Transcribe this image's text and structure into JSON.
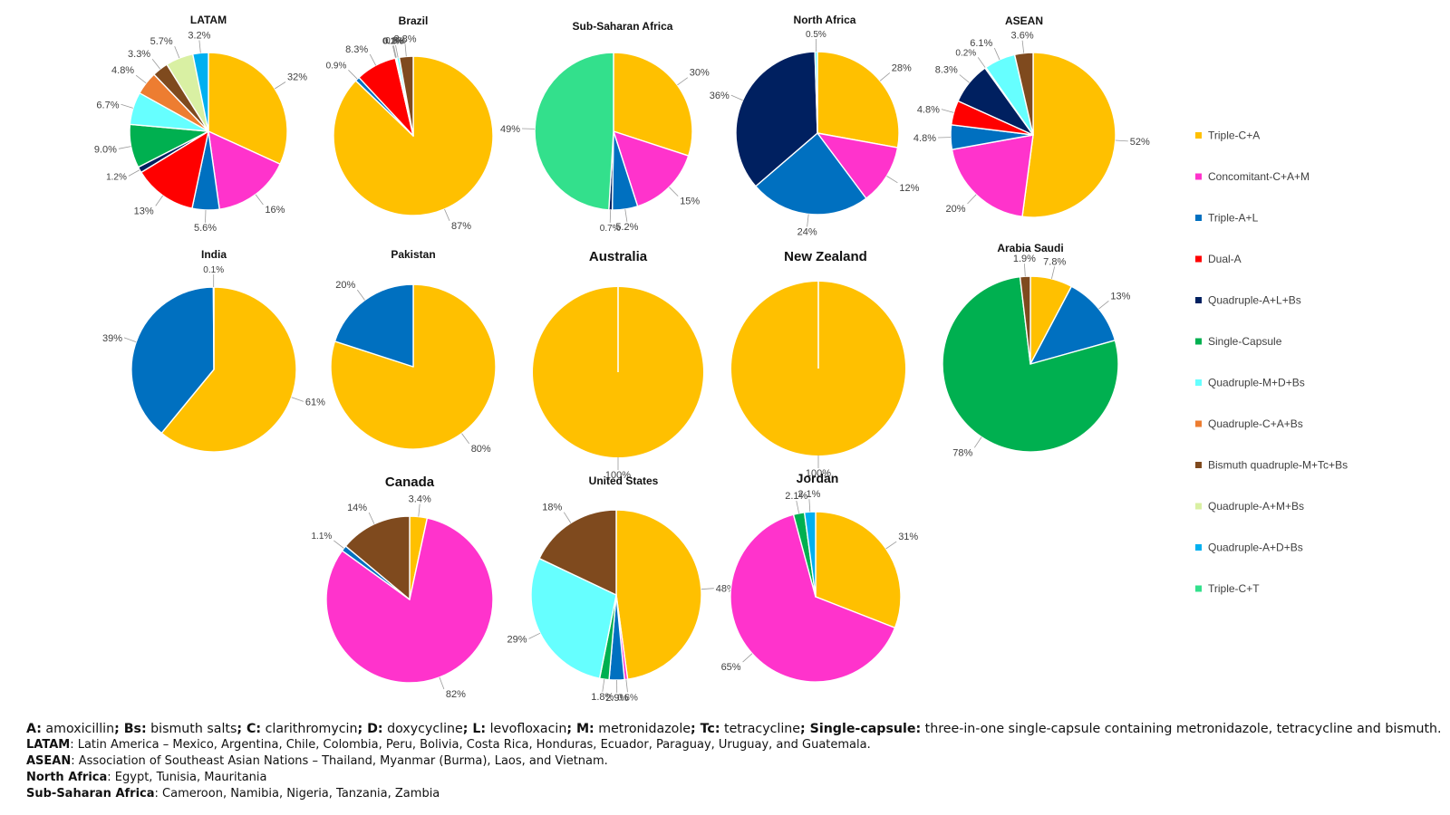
{
  "categories": {
    "TCA": {
      "label": "Triple-C+A",
      "color": "#ffc000"
    },
    "CCAM": {
      "label": "Concomitant-C+A+M",
      "color": "#ff33cc"
    },
    "TAL": {
      "label": "Triple-A+L",
      "color": "#0070c0"
    },
    "DA": {
      "label": "Dual-A",
      "color": "#ff0000"
    },
    "QALB": {
      "label": "Quadruple-A+L+Bs",
      "color": "#002060"
    },
    "SC": {
      "label": "Single-Capsule",
      "color": "#00b050"
    },
    "QMDB": {
      "label": "Quadruple-M+D+Bs",
      "color": "#66ffff"
    },
    "QCAB": {
      "label": "Quadruple-C+A+Bs",
      "color": "#ed7d31"
    },
    "BQ": {
      "label": "Bismuth quadruple-M+Tc+Bs",
      "color": "#7f4a1e"
    },
    "QAMB": {
      "label": "Quadruple-A+M+Bs",
      "color": "#d9f0a3"
    },
    "QADB": {
      "label": "Quadruple-A+D+Bs",
      "color": "#00b0f0"
    },
    "TCT": {
      "label": "Triple-C+T",
      "color": "#33e08c"
    }
  },
  "legend_order": [
    "TCA",
    "CCAM",
    "TAL",
    "DA",
    "QALB",
    "SC",
    "QMDB",
    "QCAB",
    "BQ",
    "QAMB",
    "QADB",
    "TCT"
  ],
  "chart_data": [
    {
      "type": "pie",
      "title": "LATAM",
      "slices": [
        {
          "cat": "TCA",
          "value": 32,
          "label": "32%"
        },
        {
          "cat": "CCAM",
          "value": 16,
          "label": "16%"
        },
        {
          "cat": "TAL",
          "value": 5.6,
          "label": "5.6%"
        },
        {
          "cat": "DA",
          "value": 13,
          "label": "13%"
        },
        {
          "cat": "QALB",
          "value": 1.2,
          "label": "1.2%"
        },
        {
          "cat": "SC",
          "value": 9.0,
          "label": "9.0%"
        },
        {
          "cat": "QMDB",
          "value": 6.7,
          "label": "6.7%"
        },
        {
          "cat": "QCAB",
          "value": 4.8,
          "label": "4.8%"
        },
        {
          "cat": "BQ",
          "value": 3.3,
          "label": "3.3%"
        },
        {
          "cat": "QAMB",
          "value": 5.7,
          "label": "5.7%"
        },
        {
          "cat": "QADB",
          "value": 3.2,
          "label": "3.2%"
        }
      ]
    },
    {
      "type": "pie",
      "title": "Brazil",
      "slices": [
        {
          "cat": "TCA",
          "value": 87,
          "label": "87%"
        },
        {
          "cat": "TAL",
          "value": 0.9,
          "label": "0.9%"
        },
        {
          "cat": "DA",
          "value": 8.3,
          "label": "8.3%"
        },
        {
          "cat": "QALB",
          "value": 0.1,
          "label": "0.1%"
        },
        {
          "cat": "SC",
          "value": 0.2,
          "label": "0.2%"
        },
        {
          "cat": "QMDB",
          "value": 0.5,
          "label": "0.5%"
        },
        {
          "cat": "BQ",
          "value": 2.8,
          "label": "2.8%"
        }
      ]
    },
    {
      "type": "pie",
      "title": "Sub-Saharan Africa",
      "slices": [
        {
          "cat": "TCA",
          "value": 30,
          "label": "30%"
        },
        {
          "cat": "CCAM",
          "value": 15,
          "label": "15%"
        },
        {
          "cat": "TAL",
          "value": 5.2,
          "label": "5.2%"
        },
        {
          "cat": "QALB",
          "value": 0.7,
          "label": "0.7%"
        },
        {
          "cat": "TCT",
          "value": 49,
          "label": "49%"
        }
      ]
    },
    {
      "type": "pie",
      "title": "North Africa",
      "slices": [
        {
          "cat": "TCA",
          "value": 28,
          "label": "28%"
        },
        {
          "cat": "CCAM",
          "value": 12,
          "label": "12%"
        },
        {
          "cat": "TAL",
          "value": 24,
          "label": "24%"
        },
        {
          "cat": "QALB",
          "value": 36,
          "label": "36%"
        },
        {
          "cat": "QMDB",
          "value": 0.5,
          "label": "0.5%"
        }
      ]
    },
    {
      "type": "pie",
      "title": "ASEAN",
      "slices": [
        {
          "cat": "TCA",
          "value": 52,
          "label": "52%"
        },
        {
          "cat": "CCAM",
          "value": 20,
          "label": "20%"
        },
        {
          "cat": "TAL",
          "value": 4.8,
          "label": "4.8%"
        },
        {
          "cat": "DA",
          "value": 4.8,
          "label": "4.8%"
        },
        {
          "cat": "QALB",
          "value": 8.3,
          "label": "8.3%"
        },
        {
          "cat": "SC",
          "value": 0.2,
          "label": "0.2%"
        },
        {
          "cat": "QMDB",
          "value": 6.1,
          "label": "6.1%"
        },
        {
          "cat": "BQ",
          "value": 3.6,
          "label": "3.6%"
        }
      ]
    },
    {
      "type": "pie",
      "title": "India",
      "slices": [
        {
          "cat": "TCA",
          "value": 61,
          "label": "61%"
        },
        {
          "cat": "TAL",
          "value": 39,
          "label": "39%"
        },
        {
          "cat": "QMDB",
          "value": 0.1,
          "label": "0.1%"
        }
      ]
    },
    {
      "type": "pie",
      "title": "Pakistan",
      "slices": [
        {
          "cat": "TCA",
          "value": 80,
          "label": "80%"
        },
        {
          "cat": "TAL",
          "value": 20,
          "label": "20%"
        }
      ]
    },
    {
      "type": "pie",
      "title": "Australia",
      "slices": [
        {
          "cat": "TCA",
          "value": 100,
          "label": "100%"
        }
      ]
    },
    {
      "type": "pie",
      "title": "New Zealand",
      "slices": [
        {
          "cat": "TCA",
          "value": 100,
          "label": "100%"
        }
      ]
    },
    {
      "type": "pie",
      "title": "Arabia Saudi",
      "slices": [
        {
          "cat": "TCA",
          "value": 7.8,
          "label": "7.8%"
        },
        {
          "cat": "TAL",
          "value": 13,
          "label": "13%"
        },
        {
          "cat": "SC",
          "value": 78,
          "label": "78%"
        },
        {
          "cat": "BQ",
          "value": 1.9,
          "label": "1.9%"
        }
      ]
    },
    {
      "type": "pie",
      "title": "Canada",
      "slices": [
        {
          "cat": "TCA",
          "value": 3.4,
          "label": "3.4%"
        },
        {
          "cat": "CCAM",
          "value": 82,
          "label": "82%"
        },
        {
          "cat": "TAL",
          "value": 1.1,
          "label": "1.1%"
        },
        {
          "cat": "BQ",
          "value": 14,
          "label": "14%"
        }
      ]
    },
    {
      "type": "pie",
      "title": "United States",
      "slices": [
        {
          "cat": "TCA",
          "value": 48,
          "label": "48%"
        },
        {
          "cat": "CCAM",
          "value": 0.6,
          "label": "0.6%"
        },
        {
          "cat": "TAL",
          "value": 2.9,
          "label": "2.9%"
        },
        {
          "cat": "SC",
          "value": 1.8,
          "label": "1.8%"
        },
        {
          "cat": "QMDB",
          "value": 29,
          "label": "29%"
        },
        {
          "cat": "BQ",
          "value": 18,
          "label": "18%"
        }
      ]
    },
    {
      "type": "pie",
      "title": "Jordan",
      "slices": [
        {
          "cat": "TCA",
          "value": 31,
          "label": "31%"
        },
        {
          "cat": "CCAM",
          "value": 65,
          "label": "65%"
        },
        {
          "cat": "SC",
          "value": 2.1,
          "label": "2.1%"
        },
        {
          "cat": "QADB",
          "value": 2.1,
          "label": "2.1%"
        }
      ]
    }
  ],
  "footer": {
    "abbrev": [
      {
        "term": "A:",
        "def": " amoxicillin"
      },
      {
        "term": "; Bs:",
        "def": " bismuth salts"
      },
      {
        "term": "; C:",
        "def": " clarithromycin"
      },
      {
        "term": "; D:",
        "def": " doxycycline"
      },
      {
        "term": "; L:",
        "def": " levofloxacin"
      },
      {
        "term": "; M:",
        "def": " metronidazole"
      },
      {
        "term": ";  Tc:",
        "def": " tetracycline"
      },
      {
        "term": "; Single-capsule:",
        "def": " three-in-one single-capsule containing metronidazole, tetracycline and bismuth."
      }
    ],
    "regions": [
      {
        "term": "LATAM",
        "def": ": Latin America – Mexico, Argentina, Chile, Colombia, Peru, Bolivia, Costa Rica, Honduras, Ecuador, Paraguay, Uruguay, and Guatemala."
      },
      {
        "term": "ASEAN",
        "def": ": Association of Southeast Asian Nations – Thailand, Myanmar (Burma), Laos, and Vietnam."
      },
      {
        "term": "North Africa",
        "def": ": Egypt, Tunisia, Mauritania"
      },
      {
        "term": "Sub-Saharan Africa",
        "def": ": Cameroon, Namibia, Nigeria, Tanzania, Zambia"
      }
    ]
  }
}
